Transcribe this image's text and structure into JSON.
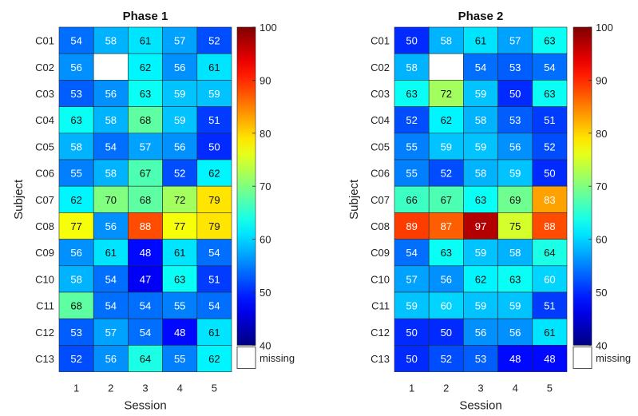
{
  "chart_data": [
    {
      "type": "heatmap",
      "title": "Phase 1",
      "xlabel": "Session",
      "ylabel": "Subject",
      "x": [
        "1",
        "2",
        "3",
        "4",
        "5"
      ],
      "y": [
        "C01",
        "C02",
        "C03",
        "C04",
        "C05",
        "C06",
        "C07",
        "C08",
        "C09",
        "C10",
        "C11",
        "C12",
        "C13"
      ],
      "values": [
        [
          54,
          58,
          61,
          57,
          52
        ],
        [
          56,
          null,
          62,
          56,
          61
        ],
        [
          53,
          56,
          63,
          59,
          59
        ],
        [
          63,
          58,
          68,
          59,
          51
        ],
        [
          58,
          54,
          57,
          56,
          50
        ],
        [
          55,
          58,
          67,
          52,
          62
        ],
        [
          62,
          70,
          68,
          72,
          79
        ],
        [
          77,
          56,
          88,
          77,
          79
        ],
        [
          56,
          61,
          48,
          61,
          54
        ],
        [
          58,
          54,
          47,
          63,
          51
        ],
        [
          68,
          54,
          54,
          55,
          54
        ],
        [
          53,
          57,
          54,
          48,
          61
        ],
        [
          52,
          56,
          64,
          55,
          62
        ]
      ],
      "colorbar": {
        "range": [
          40,
          100
        ],
        "ticks": [
          "40",
          "50",
          "60",
          "70",
          "80",
          "90",
          "100"
        ],
        "colormap": "jet"
      },
      "missing_label": "missing"
    },
    {
      "type": "heatmap",
      "title": "Phase 2",
      "xlabel": "Session",
      "ylabel": "Subject",
      "x": [
        "1",
        "2",
        "3",
        "4",
        "5"
      ],
      "y": [
        "C01",
        "C02",
        "C03",
        "C04",
        "C05",
        "C06",
        "C07",
        "C08",
        "C09",
        "C10",
        "C11",
        "C12",
        "C13"
      ],
      "values": [
        [
          50,
          58,
          61,
          57,
          63
        ],
        [
          58,
          null,
          54,
          53,
          54
        ],
        [
          63,
          72,
          59,
          50,
          63
        ],
        [
          52,
          62,
          58,
          53,
          51
        ],
        [
          55,
          59,
          59,
          56,
          52
        ],
        [
          55,
          52,
          58,
          59,
          50
        ],
        [
          66,
          67,
          63,
          69,
          83
        ],
        [
          89,
          87,
          97,
          75,
          88
        ],
        [
          54,
          63,
          59,
          58,
          64
        ],
        [
          57,
          56,
          62,
          63,
          60
        ],
        [
          59,
          60,
          59,
          59,
          51
        ],
        [
          50,
          50,
          56,
          56,
          61
        ],
        [
          50,
          52,
          53,
          48,
          48
        ]
      ],
      "colorbar": {
        "range": [
          40,
          100
        ],
        "ticks": [
          "40",
          "50",
          "60",
          "70",
          "80",
          "90",
          "100"
        ],
        "colormap": "jet"
      },
      "missing_label": "missing"
    }
  ]
}
